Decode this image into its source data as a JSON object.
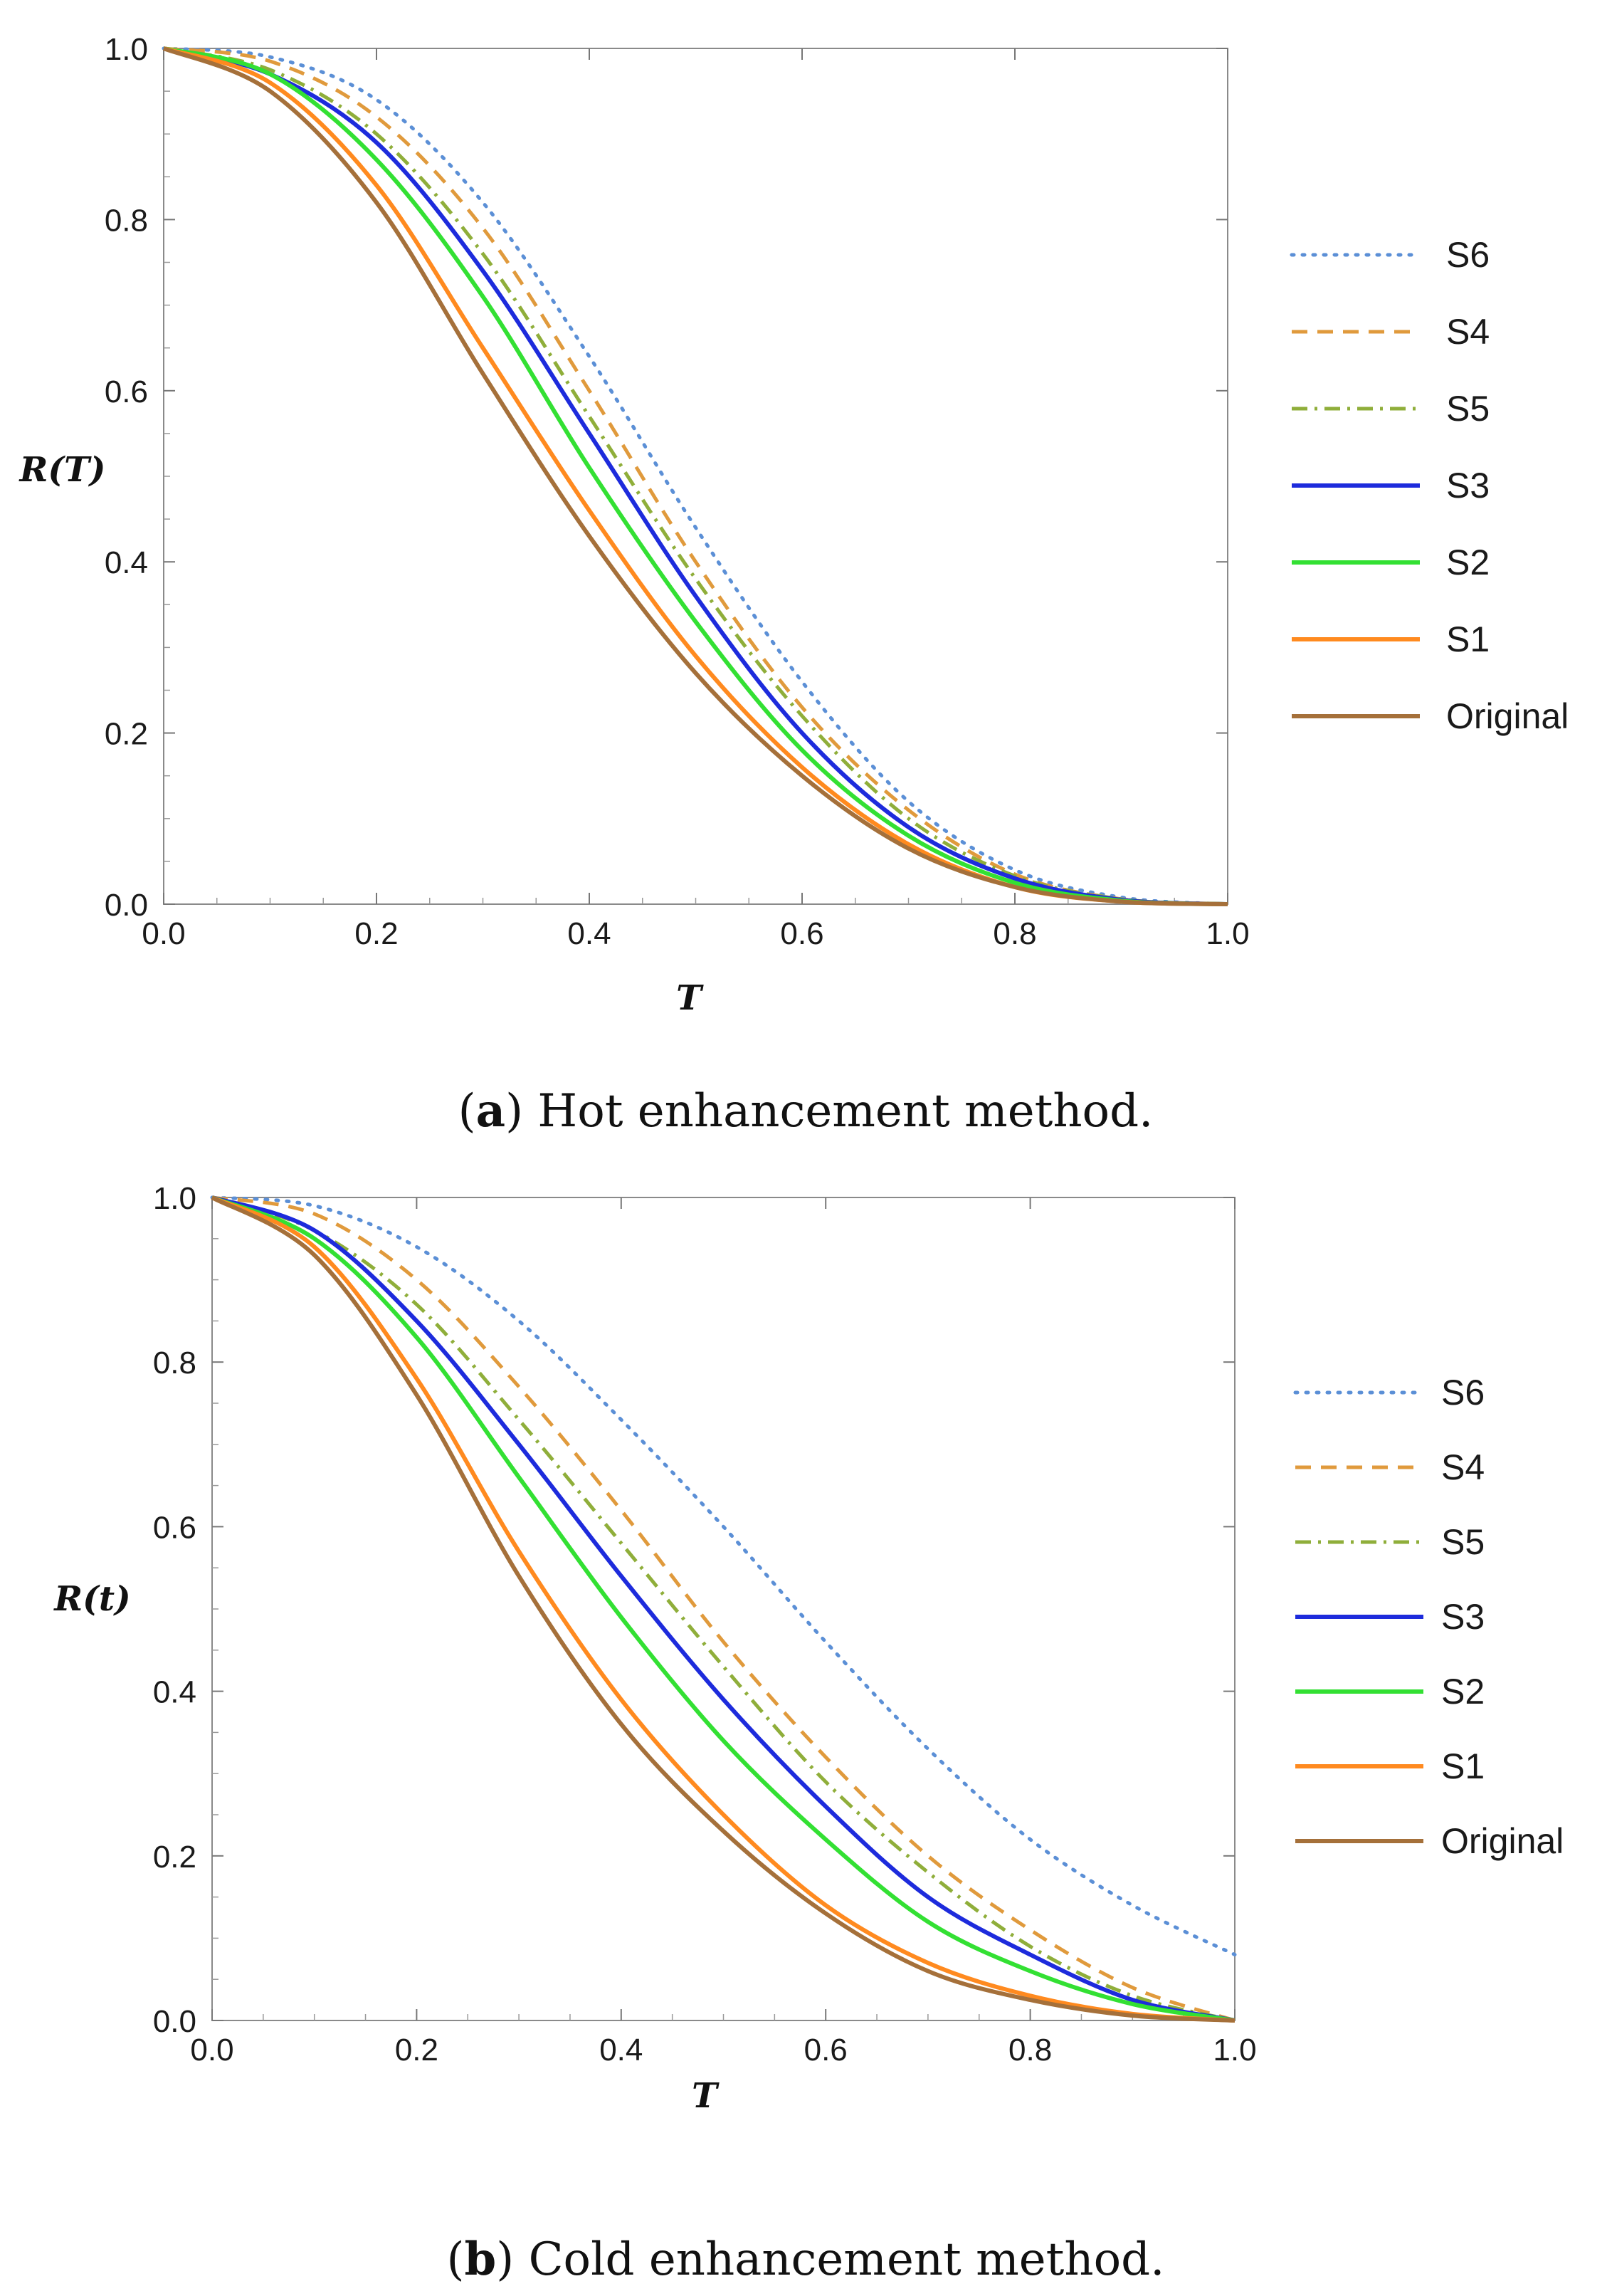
{
  "chart_data": [
    {
      "type": "line",
      "panel": "a",
      "caption_letter": "a",
      "caption_text": "Hot enhancement method.",
      "xlabel": "T",
      "ylabel": "R(T)",
      "xlim": [
        0,
        1
      ],
      "ylim": [
        0,
        1
      ],
      "x_ticks": [
        "0.0",
        "0.2",
        "0.4",
        "0.6",
        "0.8",
        "1.0"
      ],
      "y_ticks": [
        "0.0",
        "0.2",
        "0.4",
        "0.6",
        "0.8",
        "1.0"
      ],
      "legend_position": "right",
      "x": [
        0.0,
        0.1,
        0.2,
        0.3,
        0.4,
        0.5,
        0.6,
        0.7,
        0.8,
        0.9,
        1.0
      ],
      "series": [
        {
          "name": "S6",
          "color": "#5b8fd6",
          "style": "dotted",
          "values": [
            1.0,
            0.99,
            0.94,
            0.82,
            0.64,
            0.44,
            0.26,
            0.12,
            0.04,
            0.008,
            0.0
          ]
        },
        {
          "name": "S4",
          "color": "#e09a3c",
          "style": "dashed",
          "values": [
            1.0,
            0.985,
            0.92,
            0.79,
            0.6,
            0.4,
            0.23,
            0.11,
            0.035,
            0.006,
            0.0
          ]
        },
        {
          "name": "S5",
          "color": "#8fae3a",
          "style": "dashdot",
          "values": [
            1.0,
            0.975,
            0.9,
            0.76,
            0.57,
            0.38,
            0.22,
            0.1,
            0.033,
            0.006,
            0.0
          ]
        },
        {
          "name": "S3",
          "color": "#1d2bdc",
          "style": "solid",
          "values": [
            1.0,
            0.97,
            0.89,
            0.74,
            0.55,
            0.36,
            0.2,
            0.09,
            0.03,
            0.005,
            0.0
          ]
        },
        {
          "name": "S2",
          "color": "#33e033",
          "style": "solid",
          "values": [
            1.0,
            0.97,
            0.87,
            0.71,
            0.51,
            0.33,
            0.18,
            0.08,
            0.025,
            0.004,
            0.0
          ]
        },
        {
          "name": "S1",
          "color": "#ff8a1f",
          "style": "solid",
          "values": [
            1.0,
            0.96,
            0.84,
            0.65,
            0.46,
            0.29,
            0.16,
            0.07,
            0.02,
            0.003,
            0.0
          ]
        },
        {
          "name": "Original",
          "color": "#a5703a",
          "style": "solid",
          "values": [
            1.0,
            0.95,
            0.82,
            0.62,
            0.43,
            0.27,
            0.15,
            0.065,
            0.02,
            0.003,
            0.0
          ]
        }
      ]
    },
    {
      "type": "line",
      "panel": "b",
      "caption_letter": "b",
      "caption_text": "Cold enhancement method.",
      "xlabel": "T",
      "ylabel": "R(t)",
      "xlim": [
        0,
        1
      ],
      "ylim": [
        0,
        1
      ],
      "x_ticks": [
        "0.0",
        "0.2",
        "0.4",
        "0.6",
        "0.8",
        "1.0"
      ],
      "y_ticks": [
        "0.0",
        "0.2",
        "0.4",
        "0.6",
        "0.8",
        "1.0"
      ],
      "legend_position": "right",
      "x": [
        0.0,
        0.1,
        0.2,
        0.3,
        0.4,
        0.5,
        0.6,
        0.7,
        0.8,
        0.9,
        1.0
      ],
      "series": [
        {
          "name": "S6",
          "color": "#5b8fd6",
          "style": "dotted",
          "values": [
            1.0,
            0.99,
            0.94,
            0.85,
            0.73,
            0.6,
            0.46,
            0.33,
            0.22,
            0.14,
            0.08
          ]
        },
        {
          "name": "S4",
          "color": "#e09a3c",
          "style": "dashed",
          "values": [
            1.0,
            0.98,
            0.9,
            0.77,
            0.62,
            0.46,
            0.32,
            0.2,
            0.11,
            0.04,
            0.0
          ]
        },
        {
          "name": "S5",
          "color": "#8fae3a",
          "style": "dashdot",
          "values": [
            1.0,
            0.96,
            0.87,
            0.73,
            0.58,
            0.43,
            0.29,
            0.18,
            0.09,
            0.03,
            0.0
          ]
        },
        {
          "name": "S3",
          "color": "#1d2bdc",
          "style": "solid",
          "values": [
            1.0,
            0.96,
            0.85,
            0.7,
            0.54,
            0.39,
            0.26,
            0.15,
            0.08,
            0.025,
            0.0
          ]
        },
        {
          "name": "S2",
          "color": "#33e033",
          "style": "solid",
          "values": [
            1.0,
            0.95,
            0.83,
            0.66,
            0.49,
            0.34,
            0.22,
            0.12,
            0.06,
            0.02,
            0.0
          ]
        },
        {
          "name": "S1",
          "color": "#ff8a1f",
          "style": "solid",
          "values": [
            1.0,
            0.94,
            0.78,
            0.57,
            0.39,
            0.25,
            0.14,
            0.07,
            0.03,
            0.008,
            0.0
          ]
        },
        {
          "name": "Original",
          "color": "#a5703a",
          "style": "solid",
          "values": [
            1.0,
            0.93,
            0.76,
            0.54,
            0.36,
            0.23,
            0.13,
            0.06,
            0.025,
            0.006,
            0.0
          ]
        }
      ]
    }
  ]
}
